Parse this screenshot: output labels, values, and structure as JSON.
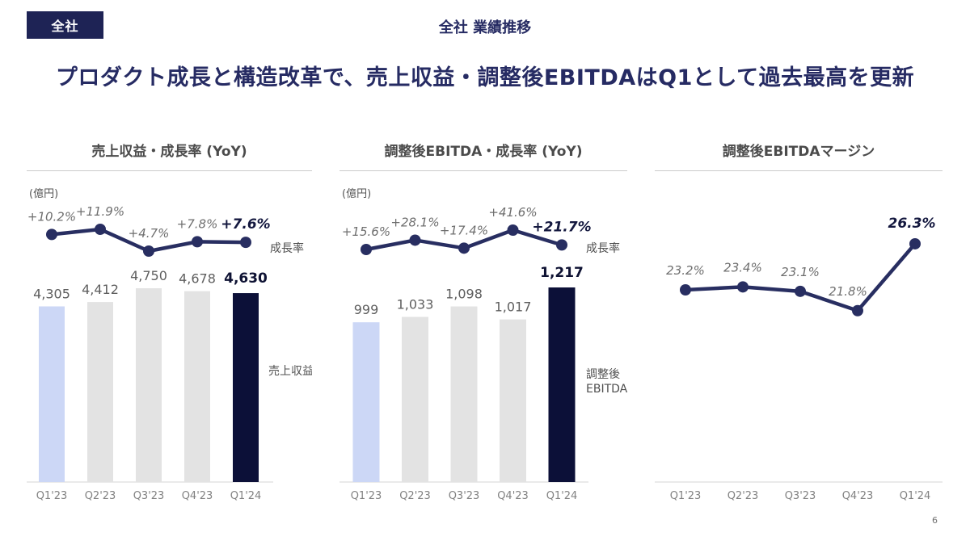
{
  "page": {
    "badge": "全社",
    "header_title": "全社 業績推移",
    "headline": "プロダクト成長と構造改革で、売上収益・調整後EBITDAはQ1として過去最高を更新",
    "page_number": "6"
  },
  "colors": {
    "navy": "#0c1038",
    "line_navy": "#282e61",
    "light_blue": "#ccd7f6",
    "bar_gray": "#e3e3e3",
    "headline_navy": "#262b63",
    "badge_bg": "#1e2355"
  },
  "chart_data": [
    {
      "id": "revenue-growth-chart",
      "type": "bar+line",
      "title": "売上収益・成長率 (YoY)",
      "unit": "(億円)",
      "categories": [
        "Q1'23",
        "Q2'23",
        "Q3'23",
        "Q4'23",
        "Q1'24"
      ],
      "bars": {
        "name": "売上収益",
        "legend_lines": [
          "売上収益"
        ],
        "values": [
          4305,
          4412,
          4750,
          4678,
          4630
        ],
        "labels": [
          "4,305",
          "4,412",
          "4,750",
          "4,678",
          "4,630"
        ]
      },
      "line": {
        "name": "成長率",
        "unit": "%",
        "values": [
          10.2,
          11.9,
          4.7,
          7.8,
          7.6
        ],
        "labels": [
          "+10.2%",
          "+11.9%",
          "+4.7%",
          "+7.8%",
          "+7.6%"
        ]
      }
    },
    {
      "id": "adjusted-ebitda-growth-chart",
      "type": "bar+line",
      "title": "調整後EBITDA・成長率 (YoY)",
      "unit": "(億円)",
      "categories": [
        "Q1'23",
        "Q2'23",
        "Q3'23",
        "Q4'23",
        "Q1'24"
      ],
      "bars": {
        "name": "調整後EBITDA",
        "legend_lines": [
          "調整後",
          "EBITDA"
        ],
        "values": [
          999,
          1033,
          1098,
          1017,
          1217
        ],
        "labels": [
          "999",
          "1,033",
          "1,098",
          "1,017",
          "1,217"
        ]
      },
      "line": {
        "name": "成長率",
        "unit": "%",
        "values": [
          15.6,
          28.1,
          17.4,
          41.6,
          21.7
        ],
        "labels": [
          "+15.6%",
          "+28.1%",
          "+17.4%",
          "+41.6%",
          "+21.7%"
        ]
      }
    },
    {
      "id": "adjusted-ebitda-margin-chart",
      "type": "line",
      "title": "調整後EBITDAマージン",
      "categories": [
        "Q1'23",
        "Q2'23",
        "Q3'23",
        "Q4'23",
        "Q1'24"
      ],
      "line": {
        "name": "調整後EBITDAマージン",
        "unit": "%",
        "values": [
          23.2,
          23.4,
          23.1,
          21.8,
          26.3
        ],
        "labels": [
          "23.2%",
          "23.4%",
          "23.1%",
          "21.8%",
          "26.3%"
        ]
      }
    }
  ]
}
